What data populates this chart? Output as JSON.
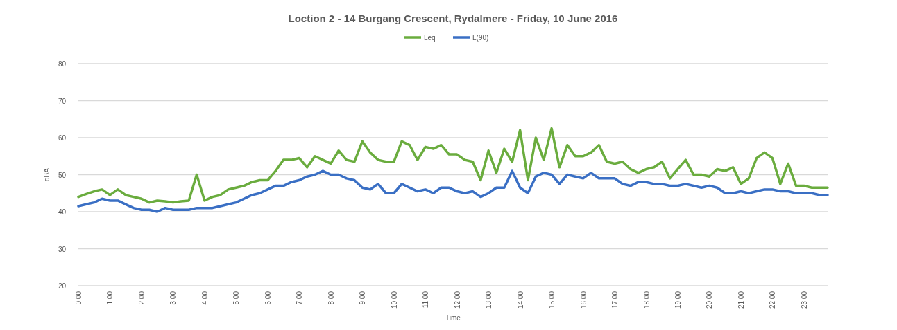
{
  "chart_data": {
    "type": "line",
    "title": "Loction 2 - 14 Burgang Crescent, Rydalmere - Friday, 10 June 2016",
    "xlabel": "Time",
    "ylabel": "dBA",
    "categories": [
      "0:00",
      null,
      null,
      null,
      "1:00",
      null,
      null,
      null,
      "2:00",
      null,
      null,
      null,
      "3:00",
      null,
      null,
      null,
      "4:00",
      null,
      null,
      null,
      "5:00",
      null,
      null,
      null,
      "6:00",
      null,
      null,
      null,
      "7:00",
      null,
      null,
      null,
      "8:00",
      null,
      null,
      null,
      "9:00",
      null,
      null,
      null,
      "10:00",
      null,
      null,
      null,
      "11:00",
      null,
      null,
      null,
      "12:00",
      null,
      null,
      null,
      "13:00",
      null,
      null,
      null,
      "14:00",
      null,
      null,
      null,
      "15:00",
      null,
      null,
      null,
      "16:00",
      null,
      null,
      null,
      "17:00",
      null,
      null,
      null,
      "18:00",
      null,
      null,
      null,
      "19:00",
      null,
      null,
      null,
      "20:00",
      null,
      null,
      null,
      "21:00",
      null,
      null,
      null,
      "22:00",
      null,
      null,
      null,
      "23:00",
      null,
      null,
      null
    ],
    "series": [
      {
        "name": "Leq",
        "color": "#6aac3e",
        "values": [
          44,
          44.8,
          45.5,
          46,
          44.5,
          46,
          44.5,
          44,
          43.5,
          42.5,
          43,
          42.8,
          42.5,
          42.8,
          43,
          50,
          43,
          44,
          44.5,
          46,
          46.5,
          47,
          48,
          48.5,
          48.5,
          51,
          54,
          54,
          54.5,
          52,
          55,
          54,
          53,
          56.5,
          54,
          53.5,
          59,
          56,
          54,
          53.5,
          53.5,
          59,
          58,
          54,
          57.5,
          57,
          58,
          55.5,
          55.5,
          54,
          53.5,
          48.5,
          56.5,
          50.5,
          57,
          53.5,
          62,
          48.5,
          60,
          54,
          62.5,
          52,
          58,
          55,
          55,
          56,
          58,
          53.5,
          53,
          53.5,
          51.5,
          50.5,
          51.5,
          52,
          53.5,
          49,
          51.5,
          54,
          50,
          50,
          49.5,
          51.5,
          51,
          52,
          47.5,
          49,
          54.5,
          56,
          54.5,
          47.5,
          53,
          47,
          47,
          46.5,
          46.5,
          46.5
        ]
      },
      {
        "name": "L(90)",
        "color": "#3a6fc4",
        "values": [
          41.5,
          42,
          42.5,
          43.5,
          43,
          43,
          42,
          41,
          40.5,
          40.5,
          40,
          41,
          40.5,
          40.5,
          40.5,
          41,
          41,
          41,
          41.5,
          42,
          42.5,
          43.5,
          44.5,
          45,
          46,
          47,
          47,
          48,
          48.5,
          49.5,
          50,
          51,
          50,
          50,
          49,
          48.5,
          46.5,
          46,
          47.5,
          45,
          45,
          47.5,
          46.5,
          45.5,
          46,
          45,
          46.5,
          46.5,
          45.5,
          45,
          45.5,
          44,
          45,
          46.5,
          46.5,
          51,
          46.5,
          45,
          49.5,
          50.5,
          50,
          47.5,
          50,
          49.5,
          49,
          50.5,
          49,
          49,
          49,
          47.5,
          47,
          48,
          48,
          47.5,
          47.5,
          47,
          47,
          47.5,
          47,
          46.5,
          47,
          46.5,
          45,
          45,
          45.5,
          45,
          45.5,
          46,
          46,
          45.5,
          45.5,
          45,
          45,
          45,
          44.5,
          44.5
        ]
      }
    ],
    "ylim": [
      20,
      80
    ],
    "yticks": [
      20,
      30,
      40,
      50,
      60,
      70,
      80
    ],
    "grid": "y",
    "legend": "top",
    "line_style": "solid",
    "marker": "none"
  }
}
